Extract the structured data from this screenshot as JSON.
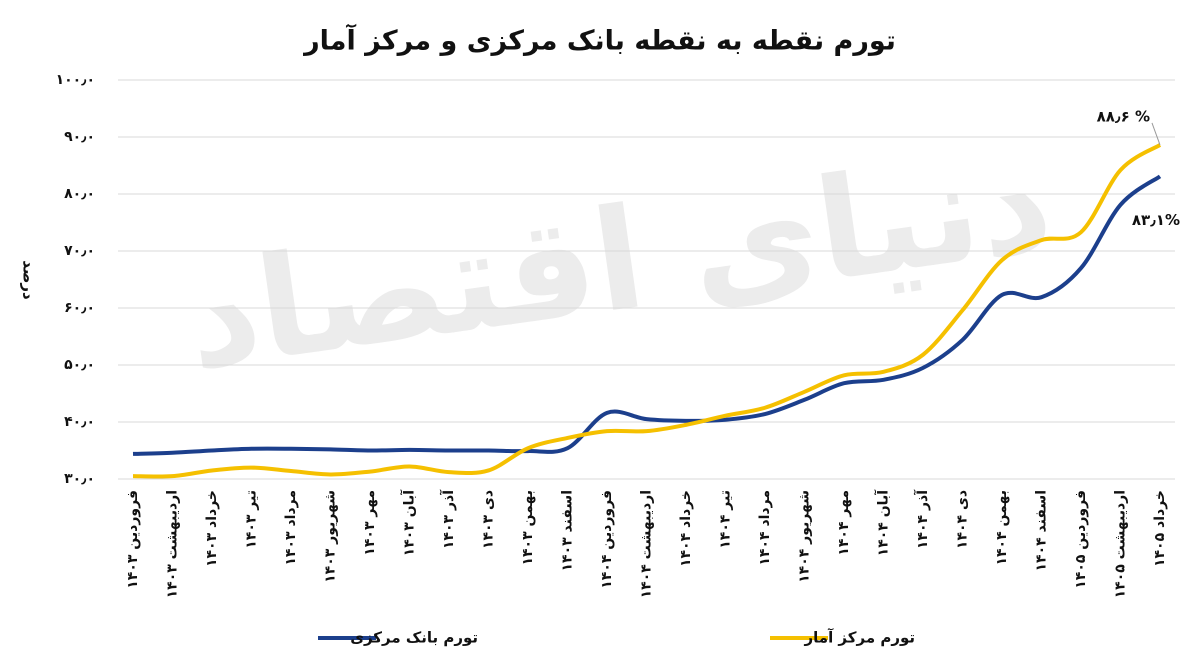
{
  "chart_data": {
    "type": "line",
    "title": "تورم نقطه به نقطه بانک مرکزی و مرکز آمار",
    "y_label": "درصد",
    "watermark": "دنیای اقتصاد",
    "categories": [
      "فروردین ۱۴۰۳",
      "اردیبهشت ۱۴۰۳",
      "خرداد ۱۴۰۳",
      "تیر ۱۴۰۳",
      "مرداد ۱۴۰۳",
      "شهریور ۱۴۰۳",
      "مهر ۱۴۰۳",
      "آبان ۱۴۰۳",
      "آذر ۱۴۰۳",
      "دی ۱۴۰۳",
      "بهمن ۱۴۰۳",
      "اسفند ۱۴۰۳",
      "فروردین ۱۴۰۴",
      "اردیبهشت ۱۴۰۴",
      "خرداد ۱۴۰۴",
      "تیر ۱۴۰۴",
      "مرداد ۱۴۰۴",
      "شهریور ۱۴۰۴",
      "مهر ۱۴۰۴",
      "آبان ۱۴۰۴",
      "آذر ۱۴۰۴",
      "دی ۱۴۰۴",
      "بهمن ۱۴۰۴",
      "اسفند ۱۴۰۴",
      "فروردین ۱۴۰۵",
      "اردیبهشت ۱۴۰۵",
      "خرداد ۱۴۰۵"
    ],
    "series": [
      {
        "name": "تورم بانک مرکزی",
        "color": "#1c3f8c",
        "values": [
          34.4,
          34.6,
          35.0,
          35.3,
          35.3,
          35.2,
          35.0,
          35.1,
          35.0,
          35.0,
          34.9,
          35.4,
          41.6,
          40.5,
          40.2,
          40.4,
          41.4,
          43.9,
          46.8,
          47.4,
          49.5,
          54.4,
          62.3,
          61.9,
          67.0,
          78.1,
          83.1
        ],
        "value_labels": [
          null,
          null,
          null,
          null,
          null,
          null,
          null,
          null,
          null,
          null,
          null,
          null,
          null,
          null,
          null,
          null,
          null,
          null,
          null,
          null,
          null,
          null,
          null,
          null,
          null,
          null,
          "۸۳٫۱%"
        ]
      },
      {
        "name": "تورم مرکز آمار",
        "color": "#f5c000",
        "values": [
          30.5,
          30.5,
          31.5,
          32.0,
          31.4,
          30.8,
          31.3,
          32.2,
          31.2,
          31.5,
          35.4,
          37.2,
          38.4,
          38.4,
          39.5,
          41.1,
          42.5,
          45.3,
          48.2,
          48.8,
          51.8,
          59.6,
          68.4,
          71.9,
          73.3,
          84.2,
          88.6
        ],
        "value_labels": [
          null,
          null,
          null,
          null,
          null,
          null,
          null,
          null,
          null,
          null,
          null,
          null,
          null,
          null,
          null,
          null,
          null,
          null,
          null,
          null,
          null,
          null,
          null,
          null,
          null,
          null,
          "% ۸۸٫۶"
        ]
      }
    ],
    "ylim": [
      30,
      100
    ],
    "yticks": [
      {
        "value": 30,
        "label": "۳۰٫۰"
      },
      {
        "value": 40,
        "label": "۴۰٫۰"
      },
      {
        "value": 50,
        "label": "۵۰٫۰"
      },
      {
        "value": 60,
        "label": "۶۰٫۰"
      },
      {
        "value": 70,
        "label": "۷۰٫۰"
      },
      {
        "value": 80,
        "label": "۸۰٫۰"
      },
      {
        "value": 90,
        "label": "۹۰٫۰"
      },
      {
        "value": 100,
        "label": "۱۰۰٫۰"
      }
    ],
    "grid": true
  }
}
